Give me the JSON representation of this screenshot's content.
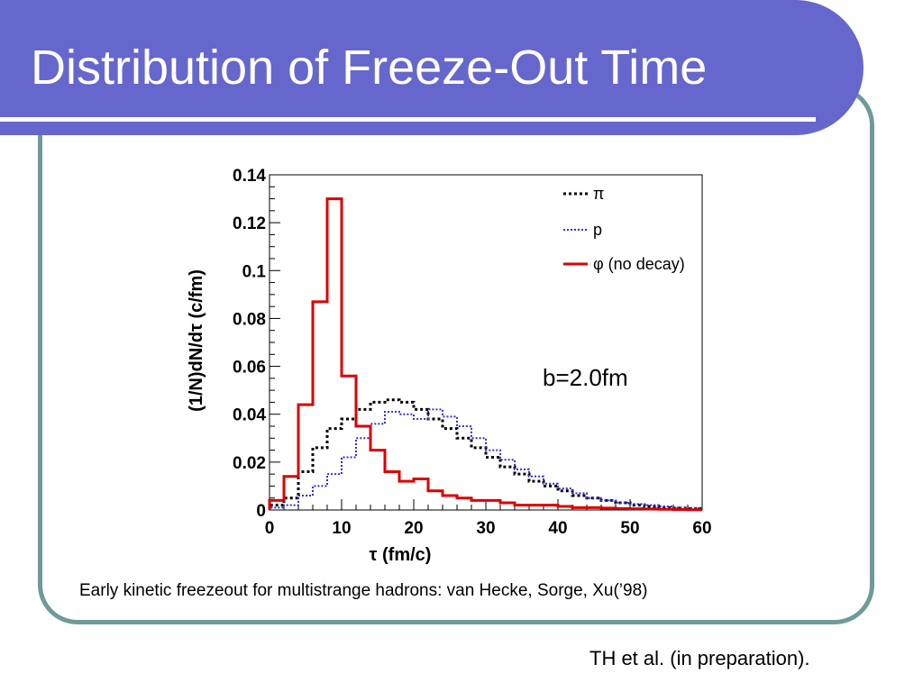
{
  "slide": {
    "title": "Distribution of Freeze-Out Time",
    "caption": "Early kinetic freezeout for multistrange hadrons: van Hecke, Sorge, Xu(’98)",
    "credit": "TH et al. (in preparation).",
    "colors": {
      "title_band": "#6667cc",
      "frame": "#6f9a98"
    }
  },
  "chart_data": {
    "type": "line",
    "xlabel": "τ (fm/c)",
    "ylabel": "(1/N)dN/dτ (c/fm)",
    "xlim": [
      0,
      60
    ],
    "ylim": [
      0,
      0.14
    ],
    "x_ticks": [
      "0",
      "10",
      "20",
      "30",
      "40",
      "50",
      "60"
    ],
    "y_ticks": [
      "0",
      "0.02",
      "0.04",
      "0.06",
      "0.08",
      "0.1",
      "0.12",
      "0.14"
    ],
    "grid": false,
    "legend_position": "top-right",
    "annotation": "b=2.0fm",
    "bin_width": 2,
    "series": [
      {
        "name": "π",
        "color": "#000000",
        "style": "dotted",
        "values": [
          0.002,
          0.005,
          0.016,
          0.026,
          0.034,
          0.038,
          0.042,
          0.045,
          0.046,
          0.045,
          0.042,
          0.038,
          0.034,
          0.03,
          0.026,
          0.022,
          0.018,
          0.015,
          0.012,
          0.01,
          0.008,
          0.006,
          0.005,
          0.004,
          0.003,
          0.002,
          0.0015,
          0.001,
          0.0008,
          0.0006
        ]
      },
      {
        "name": "p",
        "color": "#3333cc",
        "style": "dotted",
        "values": [
          0.001,
          0.002,
          0.006,
          0.01,
          0.015,
          0.022,
          0.03,
          0.036,
          0.041,
          0.04,
          0.038,
          0.042,
          0.039,
          0.035,
          0.03,
          0.025,
          0.021,
          0.017,
          0.014,
          0.011,
          0.009,
          0.007,
          0.005,
          0.004,
          0.003,
          0.0025,
          0.002,
          0.0015,
          0.001,
          0.0008
        ]
      },
      {
        "name": "φ (no decay)",
        "color": "#dd0000",
        "style": "solid",
        "values": [
          0.004,
          0.014,
          0.044,
          0.087,
          0.13,
          0.056,
          0.035,
          0.025,
          0.016,
          0.012,
          0.013,
          0.008,
          0.006,
          0.005,
          0.004,
          0.004,
          0.003,
          0.002,
          0.002,
          0.002,
          0.0015,
          0.001,
          0.001,
          0.0008,
          0.0006,
          0.0005,
          0.0004,
          0.0003,
          0.0002,
          0.0001
        ]
      }
    ]
  }
}
